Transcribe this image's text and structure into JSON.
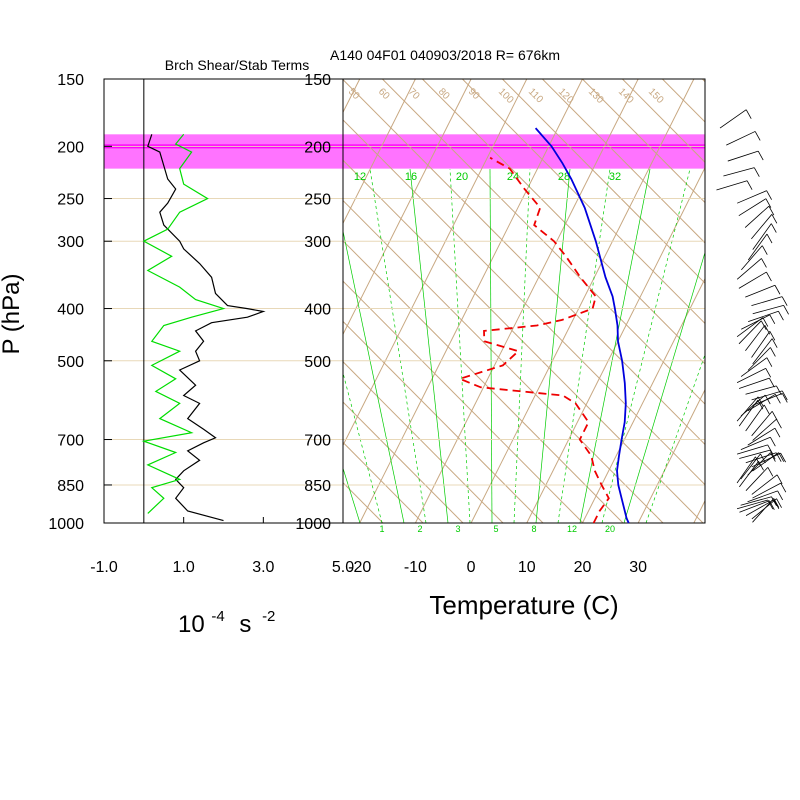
{
  "chart_data": [
    {
      "type": "line",
      "title": "Brch Shear/Stab Terms",
      "xlabel_base": "10",
      "xlabel_exp1": "-4",
      "xlabel_unit": "s",
      "xlabel_exp2": "-2",
      "ylabel": "P (hPa)",
      "x_ticks": [
        "-1.0",
        "1.0",
        "3.0",
        "5.0"
      ],
      "xlim": [
        -1,
        5
      ],
      "y_ticks": [
        "150",
        "200",
        "250",
        "300",
        "400",
        "500",
        "700",
        "850",
        "1000"
      ],
      "ylim": [
        150,
        1000
      ],
      "y_scale": "log",
      "grid": true,
      "highlight_band_hPa": [
        190,
        220
      ],
      "highlight_color": "#ff00ff",
      "series": [
        {
          "color": "#000000",
          "points": [
            [
              0.2,
              190
            ],
            [
              0.1,
              200
            ],
            [
              0.4,
              205
            ],
            [
              0.6,
              230
            ],
            [
              0.8,
              240
            ],
            [
              0.6,
              255
            ],
            [
              0.4,
              265
            ],
            [
              0.5,
              280
            ],
            [
              0.9,
              300
            ],
            [
              1.0,
              310
            ],
            [
              1.4,
              330
            ],
            [
              1.7,
              350
            ],
            [
              1.8,
              375
            ],
            [
              2.1,
              395
            ],
            [
              2.6,
              400
            ],
            [
              3.0,
              405
            ],
            [
              2.6,
              415
            ],
            [
              1.7,
              425
            ],
            [
              1.3,
              440
            ],
            [
              1.5,
              460
            ],
            [
              1.3,
              480
            ],
            [
              1.4,
              500
            ],
            [
              0.9,
              520
            ],
            [
              1.3,
              555
            ],
            [
              1.0,
              580
            ],
            [
              1.4,
              600
            ],
            [
              1.1,
              640
            ],
            [
              1.5,
              670
            ],
            [
              1.8,
              695
            ],
            [
              1.5,
              710
            ],
            [
              1.1,
              735
            ],
            [
              1.4,
              765
            ],
            [
              1.0,
              800
            ],
            [
              0.8,
              830
            ],
            [
              1.0,
              860
            ],
            [
              0.8,
              900
            ],
            [
              1.1,
              950
            ],
            [
              2.0,
              990
            ]
          ]
        },
        {
          "color": "#00dd00",
          "points": [
            [
              1.0,
              190
            ],
            [
              0.8,
              198
            ],
            [
              1.2,
              205
            ],
            [
              0.9,
              220
            ],
            [
              1.0,
              235
            ],
            [
              1.6,
              250
            ],
            [
              0.9,
              265
            ],
            [
              0.6,
              285
            ],
            [
              0.0,
              300
            ],
            [
              0.7,
              320
            ],
            [
              0.1,
              340
            ],
            [
              0.9,
              365
            ],
            [
              1.3,
              385
            ],
            [
              2.0,
              400
            ],
            [
              1.2,
              415
            ],
            [
              0.5,
              430
            ],
            [
              0.2,
              460
            ],
            [
              0.9,
              480
            ],
            [
              0.2,
              510
            ],
            [
              0.8,
              540
            ],
            [
              0.3,
              570
            ],
            [
              0.9,
              600
            ],
            [
              0.4,
              640
            ],
            [
              1.2,
              680
            ],
            [
              0.0,
              705
            ],
            [
              0.8,
              740
            ],
            [
              0.1,
              780
            ],
            [
              0.9,
              830
            ],
            [
              0.2,
              860
            ],
            [
              0.5,
              900
            ],
            [
              0.1,
              960
            ]
          ]
        }
      ]
    },
    {
      "type": "line",
      "title": "A140 04F01 040903/2018 R= 676km",
      "xlabel": "Temperature (C)",
      "x_ticks": [
        "-20",
        "-10",
        "0",
        "10",
        "20",
        "30"
      ],
      "xlim": [
        -23,
        42
      ],
      "y_ticks": [
        "150",
        "200",
        "250",
        "300",
        "400",
        "500",
        "700",
        "850",
        "1000"
      ],
      "ylim": [
        150,
        1000
      ],
      "y_scale": "log",
      "skewed": true,
      "background_lines": {
        "isotherm_color": "#c8a882",
        "mixing_ratio_color": "#00cc00",
        "mixing_ratio_top_labels": [
          "12",
          "16",
          "20",
          "24",
          "28",
          "32"
        ],
        "mixing_ratio_bottom_labels": [
          "1",
          "2",
          "3",
          "5",
          "8",
          "12",
          "20"
        ],
        "adiabat_labels": [
          "50",
          "60",
          "70",
          "80",
          "90",
          "100",
          "110",
          "120",
          "130",
          "140",
          "150"
        ]
      },
      "series": [
        {
          "name": "",
          "color": "#0000dd",
          "style": "solid",
          "points": [
            [
              28.3,
              1000
            ],
            [
              27.5,
              980
            ],
            [
              24.8,
              900
            ],
            [
              23.0,
              850
            ],
            [
              21.5,
              800
            ],
            [
              20.5,
              750
            ],
            [
              19.5,
              700
            ],
            [
              18.5,
              650
            ],
            [
              17.0,
              600
            ],
            [
              15.0,
              550
            ],
            [
              12.5,
              500
            ],
            [
              10.0,
              460
            ],
            [
              8.5,
              430
            ],
            [
              6.5,
              400
            ],
            [
              5.0,
              380
            ],
            [
              2.0,
              350
            ],
            [
              -3.0,
              300
            ],
            [
              -8.0,
              260
            ],
            [
              -13.0,
              230
            ],
            [
              -16.0,
              215
            ],
            [
              -19.5,
              200
            ],
            [
              -24.0,
              185
            ]
          ]
        },
        {
          "name": "",
          "color": "#ee0000",
          "style": "dashed",
          "points": [
            [
              22.0,
              1000
            ],
            [
              22.0,
              950
            ],
            [
              22.5,
              900
            ],
            [
              20.0,
              850
            ],
            [
              17.5,
              800
            ],
            [
              15.5,
              750
            ],
            [
              12.0,
              700
            ],
            [
              12.0,
              650
            ],
            [
              8.0,
              600
            ],
            [
              5.0,
              580
            ],
            [
              -10.5,
              560
            ],
            [
              -15.0,
              540
            ],
            [
              -8.5,
              510
            ],
            [
              -7.0,
              480
            ],
            [
              -14.0,
              460
            ],
            [
              -15.0,
              440
            ],
            [
              -6.0,
              430
            ],
            [
              -2.0,
              420
            ],
            [
              2.5,
              400
            ],
            [
              2.0,
              380
            ],
            [
              -2.5,
              350
            ],
            [
              -7.0,
              320
            ],
            [
              -10.5,
              300
            ],
            [
              -15.5,
              280
            ],
            [
              -16.0,
              260
            ],
            [
              -20.5,
              240
            ],
            [
              -25.0,
              220
            ],
            [
              -29.5,
              210
            ]
          ]
        }
      ]
    },
    {
      "type": "other",
      "description_key": "wind barbs",
      "color": "#000000"
    }
  ]
}
